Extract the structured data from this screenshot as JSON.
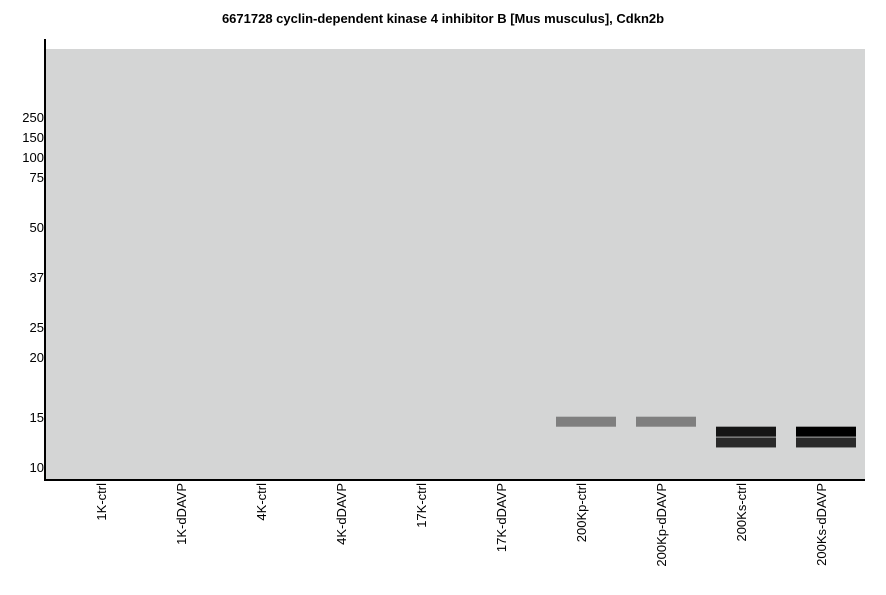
{
  "chart_data": {
    "type": "gel",
    "title": "6671728 cyclin-dependent kinase 4 inhibitor B [Mus musculus], Cdkn2b",
    "mw_markers": [
      "250",
      "150",
      "100",
      "75",
      "50",
      "37",
      "25",
      "20",
      "15",
      "10"
    ],
    "lanes": [
      "1K-ctrl",
      "1K-dDAVP",
      "4K-ctrl",
      "4K-dDAVP",
      "17K-ctrl",
      "17K-dDAVP",
      "200Kp-ctrl",
      "200Kp-dDAVP",
      "200Ks-ctrl",
      "200Ks-dDAVP"
    ],
    "bands": [
      {
        "lane": "200Kp-ctrl",
        "mw": 14,
        "intensity": 0.4
      },
      {
        "lane": "200Kp-dDAVP",
        "mw": 14,
        "intensity": 0.4
      },
      {
        "lane": "200Ks-ctrl",
        "mw": 13,
        "intensity": 0.9
      },
      {
        "lane": "200Ks-ctrl",
        "mw": 12,
        "intensity": 0.8
      },
      {
        "lane": "200Ks-dDAVP",
        "mw": 13,
        "intensity": 1.0
      },
      {
        "lane": "200Ks-dDAVP",
        "mw": 12,
        "intensity": 0.8
      }
    ],
    "colors": {
      "background": "#d4d5d5",
      "axis": "#000000"
    }
  }
}
